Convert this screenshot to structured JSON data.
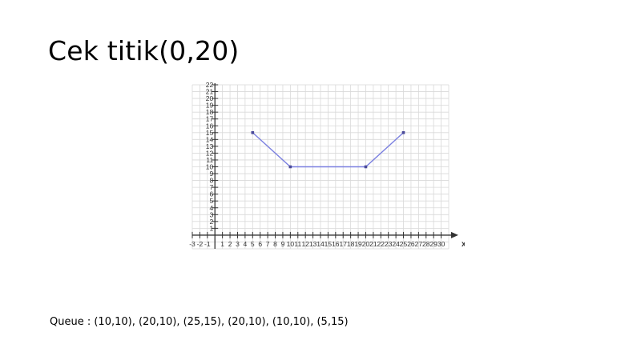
{
  "slide": {
    "title": "Cek titik(0,20)",
    "queue_text": "Queue : (10,10), (20,10), (25,15), (20,10), (10,10), (5,15)"
  },
  "colors": {
    "grid": "#d9d9d9",
    "axis": "#333333",
    "line": "#7b80e0",
    "point": "#4a4a9a"
  },
  "chart_data": {
    "type": "line",
    "title": "",
    "xlabel": "x",
    "ylabel": "",
    "xlim": [
      -3,
      31
    ],
    "ylim": [
      -2,
      22
    ],
    "grid": true,
    "x_tick_labels": [
      "-3",
      "-2",
      "-1",
      "1",
      "2",
      "3",
      "4",
      "5",
      "6",
      "7",
      "8",
      "9",
      "10",
      "11",
      "12",
      "13",
      "14",
      "15",
      "16",
      "17",
      "18",
      "19",
      "20",
      "21",
      "22",
      "23",
      "24",
      "25",
      "26",
      "27",
      "28",
      "29",
      "30"
    ],
    "x_tick_values": [
      -3,
      -2,
      -1,
      1,
      2,
      3,
      4,
      5,
      6,
      7,
      8,
      9,
      10,
      11,
      12,
      13,
      14,
      15,
      16,
      17,
      18,
      19,
      20,
      21,
      22,
      23,
      24,
      25,
      26,
      27,
      28,
      29,
      30
    ],
    "y_tick_labels": [
      "1",
      "2",
      "3",
      "4",
      "5",
      "6",
      "7",
      "8",
      "9",
      "10",
      "11",
      "12",
      "13",
      "14",
      "15",
      "16",
      "17",
      "18",
      "19",
      "20",
      "21",
      "22"
    ],
    "y_tick_values": [
      1,
      2,
      3,
      4,
      5,
      6,
      7,
      8,
      9,
      10,
      11,
      12,
      13,
      14,
      15,
      16,
      17,
      18,
      19,
      20,
      21,
      22
    ],
    "series": [
      {
        "x": [
          5,
          10,
          20,
          25
        ],
        "y": [
          15,
          10,
          10,
          15
        ]
      }
    ]
  }
}
